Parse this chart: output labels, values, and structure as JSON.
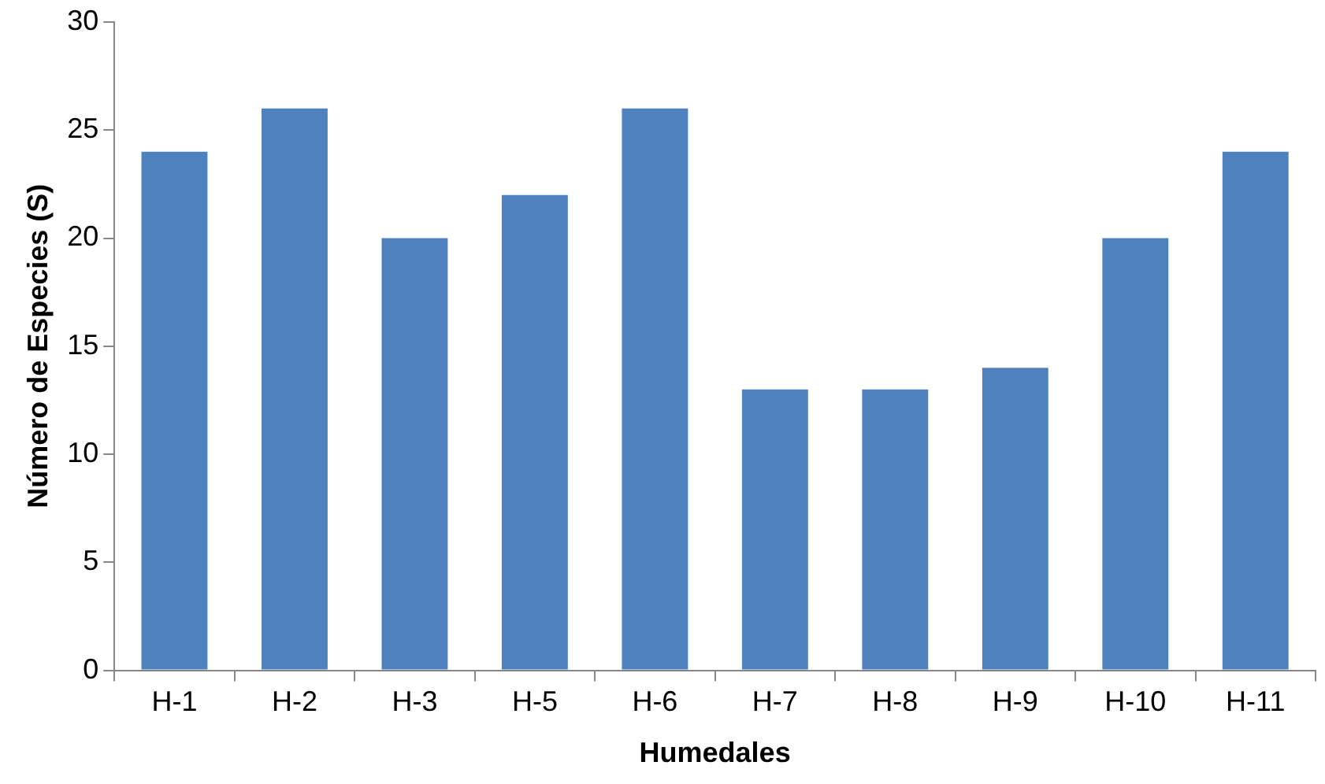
{
  "chart_data": {
    "type": "bar",
    "xlabel": "Humedales",
    "ylabel": "Número de Especies (S)",
    "categories": [
      "H-1",
      "H-2",
      "H-3",
      "H-5",
      "H-6",
      "H-7",
      "H-8",
      "H-9",
      "H-10",
      "H-11"
    ],
    "values": [
      24,
      26,
      20,
      22,
      26,
      13,
      13,
      14,
      20,
      24
    ],
    "color": "#4f81bd",
    "ylim": [
      0,
      30
    ],
    "yticks": [
      0,
      5,
      10,
      15,
      20,
      25,
      30
    ],
    "grid": false,
    "legend": false
  }
}
